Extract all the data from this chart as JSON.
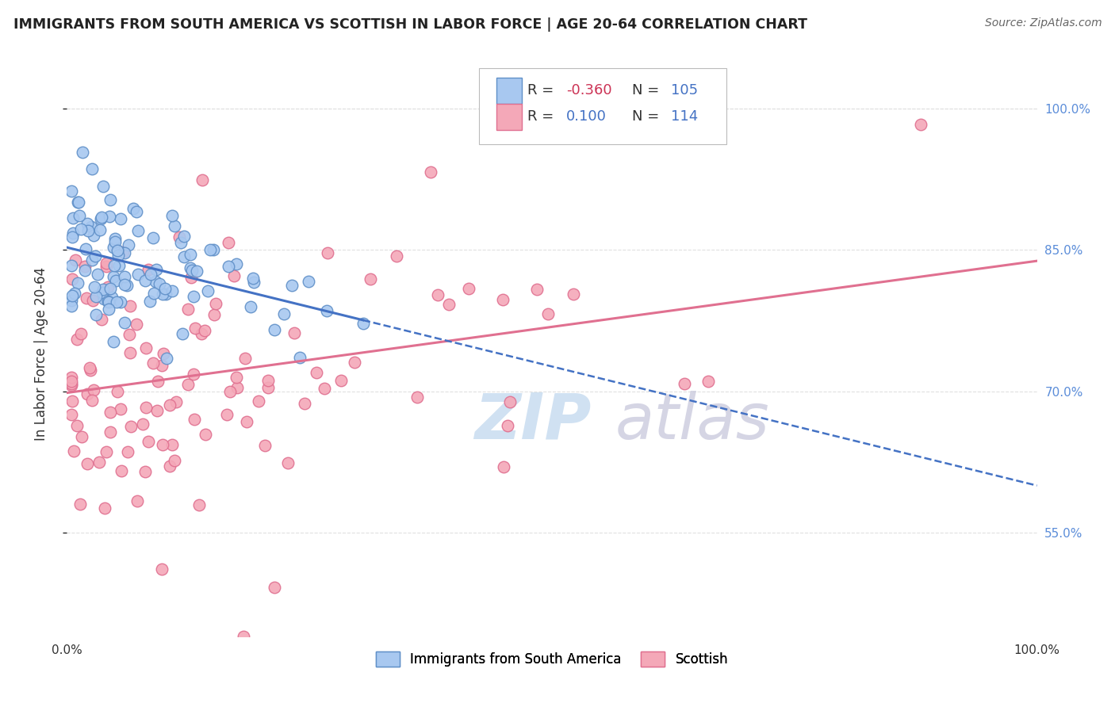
{
  "title": "IMMIGRANTS FROM SOUTH AMERICA VS SCOTTISH IN LABOR FORCE | AGE 20-64 CORRELATION CHART",
  "source": "Source: ZipAtlas.com",
  "ylabel": "In Labor Force | Age 20-64",
  "xlim": [
    0.0,
    1.0
  ],
  "ylim": [
    0.44,
    1.04
  ],
  "xtick_labels": [
    "0.0%",
    "",
    "",
    "",
    "100.0%"
  ],
  "ytick_labels_right": [
    "55.0%",
    "70.0%",
    "85.0%",
    "100.0%"
  ],
  "ytick_vals_right": [
    0.55,
    0.7,
    0.85,
    1.0
  ],
  "legend_r1": "-0.360",
  "legend_n1": "105",
  "legend_r2": "0.100",
  "legend_n2": "114",
  "color_blue": "#A8C8F0",
  "color_pink": "#F4A8B8",
  "color_blue_edge": "#6090C8",
  "color_pink_edge": "#E07090",
  "color_blue_line": "#4472C4",
  "color_pink_line": "#E07090",
  "color_right_axis": "#5B8DD9",
  "watermark_zip": "ZIP",
  "watermark_atlas": "atlas",
  "background_color": "#FFFFFF",
  "grid_color": "#E0E0E0",
  "legend_r1_color": "#CC3355",
  "legend_n_color": "#4472C4",
  "legend_r2_color": "#4472C4"
}
